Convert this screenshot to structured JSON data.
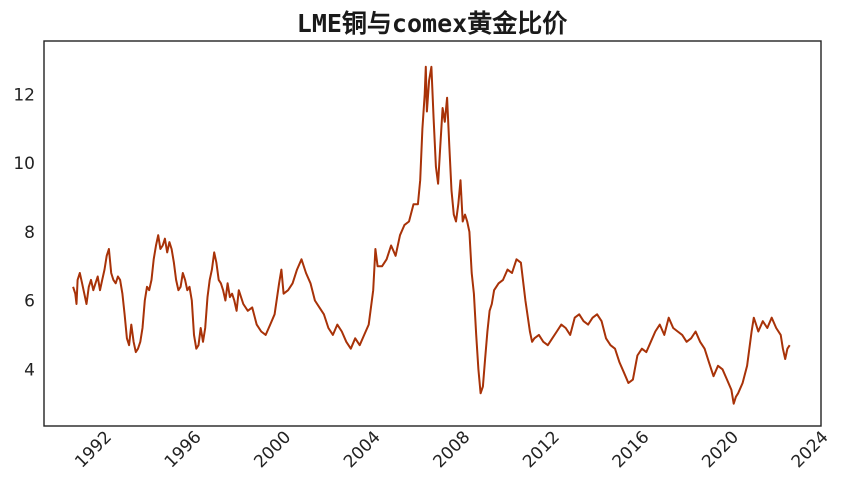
{
  "chart_data": {
    "type": "line",
    "title": "LME铜与comex黄金比价",
    "xlabel": "",
    "ylabel": "",
    "xlim": [
      1989.3,
      2024
    ],
    "ylim": [
      2.35,
      13.55
    ],
    "grid": false,
    "legend": "none",
    "x_ticks": [
      "1992",
      "1996",
      "2000",
      "2004",
      "2008",
      "2012",
      "2016",
      "2020",
      "2024"
    ],
    "y_ticks": [
      "4",
      "6",
      "8",
      "10",
      "12"
    ],
    "series": [
      {
        "color": "#a83208",
        "x": [
          1990.6,
          1990.7,
          1990.75,
          1990.8,
          1990.9,
          1991.0,
          1991.1,
          1991.2,
          1991.3,
          1991.4,
          1991.5,
          1991.6,
          1991.7,
          1991.8,
          1991.9,
          1992.0,
          1992.1,
          1992.2,
          1992.3,
          1992.35,
          1992.4,
          1992.5,
          1992.6,
          1992.7,
          1992.8,
          1992.9,
          1993.0,
          1993.1,
          1993.15,
          1993.2,
          1993.3,
          1993.4,
          1993.5,
          1993.6,
          1993.7,
          1993.8,
          1993.9,
          1994.0,
          1994.1,
          1994.2,
          1994.3,
          1994.4,
          1994.5,
          1994.6,
          1994.7,
          1994.8,
          1994.9,
          1995.0,
          1995.1,
          1995.2,
          1995.3,
          1995.4,
          1995.5,
          1995.6,
          1995.7,
          1995.8,
          1995.9,
          1996.0,
          1996.1,
          1996.2,
          1996.3,
          1996.35,
          1996.4,
          1996.5,
          1996.6,
          1996.7,
          1996.8,
          1996.9,
          1997.0,
          1997.1,
          1997.2,
          1997.3,
          1997.4,
          1997.5,
          1997.6,
          1997.7,
          1997.8,
          1997.9,
          1998.0,
          1998.2,
          1998.4,
          1998.6,
          1998.8,
          1999.0,
          1999.2,
          1999.4,
          1999.6,
          1999.8,
          1999.9,
          2000.0,
          2000.2,
          2000.4,
          2000.6,
          2000.8,
          2001.0,
          2001.2,
          2001.4,
          2001.6,
          2001.8,
          2002.0,
          2002.2,
          2002.4,
          2002.6,
          2002.8,
          2003.0,
          2003.2,
          2003.4,
          2003.6,
          2003.8,
          2004.0,
          2004.1,
          2004.2,
          2004.4,
          2004.6,
          2004.8,
          2005.0,
          2005.2,
          2005.4,
          2005.6,
          2005.8,
          2006.0,
          2006.1,
          2006.2,
          2006.3,
          2006.35,
          2006.4,
          2006.5,
          2006.6,
          2006.7,
          2006.8,
          2006.9,
          2007.0,
          2007.1,
          2007.2,
          2007.3,
          2007.4,
          2007.5,
          2007.6,
          2007.7,
          2007.8,
          2007.9,
          2008.0,
          2008.1,
          2008.2,
          2008.3,
          2008.4,
          2008.5,
          2008.6,
          2008.7,
          2008.8,
          2008.9,
          2009.0,
          2009.1,
          2009.2,
          2009.3,
          2009.4,
          2009.6,
          2009.8,
          2010.0,
          2010.2,
          2010.4,
          2010.6,
          2010.8,
          2011.0,
          2011.1,
          2011.2,
          2011.4,
          2011.6,
          2011.8,
          2012.0,
          2012.2,
          2012.4,
          2012.6,
          2012.8,
          2013.0,
          2013.2,
          2013.4,
          2013.6,
          2013.8,
          2014.0,
          2014.2,
          2014.4,
          2014.6,
          2014.8,
          2015.0,
          2015.2,
          2015.4,
          2015.6,
          2015.8,
          2016.0,
          2016.2,
          2016.4,
          2016.6,
          2016.8,
          2017.0,
          2017.2,
          2017.4,
          2017.6,
          2017.8,
          2018.0,
          2018.2,
          2018.4,
          2018.6,
          2018.8,
          2019.0,
          2019.2,
          2019.4,
          2019.6,
          2019.8,
          2020.0,
          2020.1,
          2020.2,
          2020.3,
          2020.5,
          2020.7,
          2020.9,
          2021.0,
          2021.1,
          2021.2,
          2021.4,
          2021.6,
          2021.8,
          2022.0,
          2022.2,
          2022.3,
          2022.4,
          2022.5,
          2022.6
        ],
        "y": [
          6.4,
          6.2,
          5.9,
          6.6,
          6.8,
          6.5,
          6.2,
          5.9,
          6.4,
          6.6,
          6.3,
          6.5,
          6.7,
          6.3,
          6.6,
          6.9,
          7.3,
          7.5,
          6.8,
          6.7,
          6.6,
          6.5,
          6.7,
          6.6,
          6.2,
          5.6,
          4.9,
          4.7,
          5.0,
          5.3,
          4.8,
          4.5,
          4.6,
          4.8,
          5.2,
          6.0,
          6.4,
          6.3,
          6.6,
          7.2,
          7.6,
          7.9,
          7.5,
          7.6,
          7.8,
          7.4,
          7.7,
          7.5,
          7.1,
          6.6,
          6.3,
          6.4,
          6.8,
          6.6,
          6.3,
          6.4,
          6.0,
          5.0,
          4.6,
          4.7,
          5.2,
          5.0,
          4.8,
          5.2,
          6.1,
          6.6,
          6.9,
          7.4,
          7.1,
          6.6,
          6.5,
          6.3,
          6.0,
          6.5,
          6.1,
          6.2,
          6.0,
          5.7,
          6.3,
          5.9,
          5.7,
          5.8,
          5.3,
          5.1,
          5.0,
          5.3,
          5.6,
          6.5,
          6.9,
          6.2,
          6.3,
          6.5,
          6.9,
          7.2,
          6.8,
          6.5,
          6.0,
          5.8,
          5.6,
          5.2,
          5.0,
          5.3,
          5.1,
          4.8,
          4.6,
          4.9,
          4.7,
          5.0,
          5.3,
          6.3,
          7.5,
          7.0,
          7.0,
          7.2,
          7.6,
          7.3,
          7.9,
          8.2,
          8.3,
          8.8,
          8.8,
          9.5,
          11.0,
          12.0,
          12.8,
          11.5,
          12.4,
          12.8,
          11.3,
          9.9,
          9.4,
          10.5,
          11.6,
          11.2,
          11.9,
          10.5,
          9.2,
          8.5,
          8.3,
          8.8,
          9.5,
          8.3,
          8.5,
          8.3,
          8.0,
          6.8,
          6.2,
          5.0,
          4.0,
          3.3,
          3.5,
          4.3,
          5.1,
          5.7,
          5.9,
          6.3,
          6.5,
          6.6,
          6.9,
          6.8,
          7.2,
          7.1,
          6.0,
          5.1,
          4.8,
          4.9,
          5.0,
          4.8,
          4.7,
          4.9,
          5.1,
          5.3,
          5.2,
          5.0,
          5.5,
          5.6,
          5.4,
          5.3,
          5.5,
          5.6,
          5.4,
          4.9,
          4.7,
          4.6,
          4.2,
          3.9,
          3.6,
          3.7,
          4.4,
          4.6,
          4.5,
          4.8,
          5.1,
          5.3,
          5.0,
          5.5,
          5.2,
          5.1,
          5.0,
          4.8,
          4.9,
          5.1,
          4.8,
          4.6,
          4.2,
          3.8,
          4.1,
          4.0,
          3.7,
          3.4,
          3.0,
          3.2,
          3.3,
          3.6,
          4.1,
          5.1,
          5.5,
          5.3,
          5.1,
          5.4,
          5.2,
          5.5,
          5.2,
          5.0,
          4.6,
          4.3,
          4.6,
          4.7
        ]
      }
    ]
  }
}
